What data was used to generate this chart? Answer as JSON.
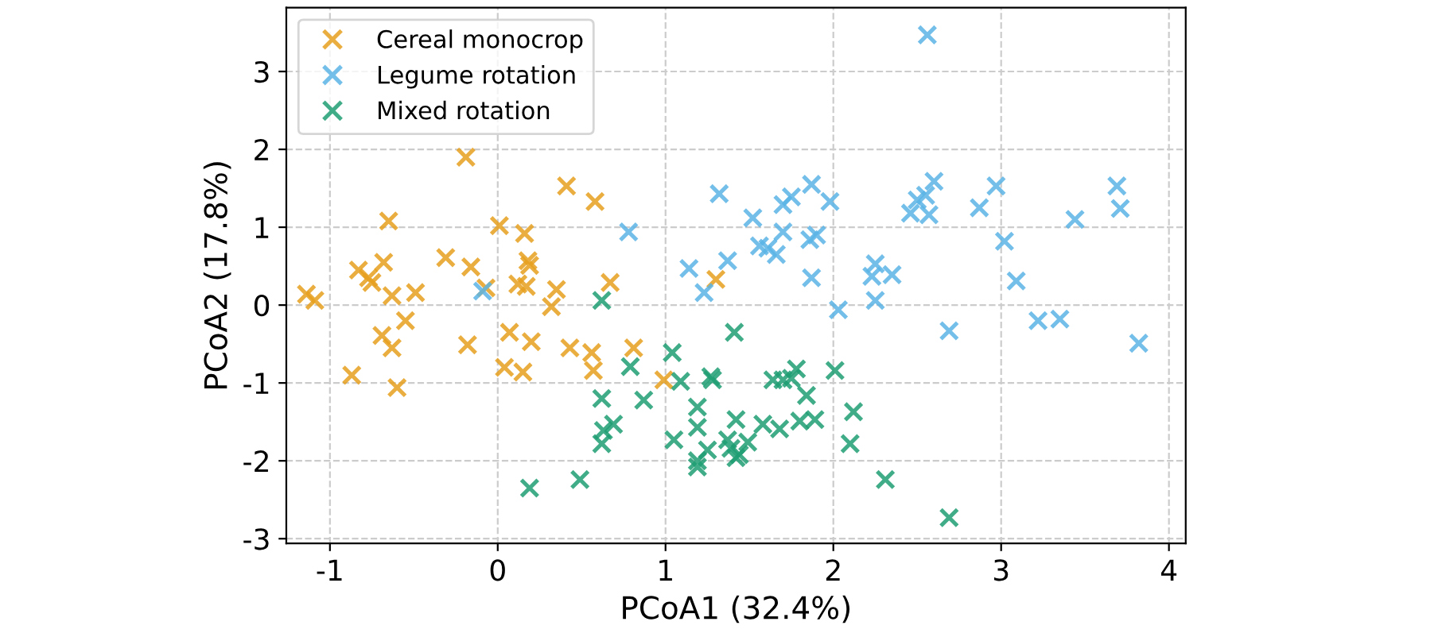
{
  "chart_data": {
    "type": "scatter",
    "xlabel": "PCoA1 (32.4%)",
    "ylabel": "PCoA2 (17.8%)",
    "xlim": [
      -1.26,
      4.1
    ],
    "ylim": [
      -3.06,
      3.82
    ],
    "xticks": [
      -1,
      0,
      1,
      2,
      3,
      4
    ],
    "yticks": [
      -3,
      -2,
      -1,
      0,
      1,
      2,
      3
    ],
    "grid": true,
    "legend": "top left",
    "marker": "cross",
    "series": [
      {
        "name": "Cereal monocrop",
        "color": "#e6a01e",
        "x": [
          -1.14,
          -1.09,
          -0.83,
          -0.77,
          -0.75,
          -0.68,
          -0.65,
          -0.63,
          -0.49,
          -0.69,
          -0.55,
          -0.63,
          -0.87,
          -0.6,
          -0.19,
          -0.31,
          -0.16,
          -0.07,
          -0.18,
          0.01,
          0.16,
          0.18,
          0.19,
          0.12,
          0.17,
          0.35,
          0.32,
          0.07,
          0.2,
          0.04,
          0.15,
          0.41,
          0.58,
          0.67,
          0.43,
          0.56,
          0.57,
          0.81,
          0.99,
          1.3
        ],
        "values": [
          0.14,
          0.06,
          0.45,
          0.35,
          0.29,
          0.55,
          1.08,
          0.12,
          0.16,
          -0.39,
          -0.2,
          -0.55,
          -0.9,
          -1.06,
          1.9,
          0.61,
          0.49,
          0.22,
          -0.51,
          1.02,
          0.92,
          0.57,
          0.51,
          0.27,
          0.24,
          0.2,
          -0.02,
          -0.35,
          -0.47,
          -0.8,
          -0.86,
          1.53,
          1.33,
          0.29,
          -0.55,
          -0.61,
          -0.84,
          -0.55,
          -0.96,
          0.33
        ]
      },
      {
        "name": "Legume rotation",
        "color": "#5ab4e6",
        "x": [
          -0.09,
          0.78,
          1.14,
          1.23,
          1.32,
          1.37,
          1.52,
          1.56,
          1.61,
          1.66,
          1.7,
          1.7,
          1.75,
          1.87,
          1.86,
          1.9,
          1.87,
          1.98,
          2.03,
          2.25,
          2.23,
          2.35,
          2.25,
          2.46,
          2.5,
          2.55,
          2.57,
          2.6,
          2.56,
          2.69,
          2.87,
          2.97,
          3.02,
          3.09,
          3.22,
          3.35,
          3.44,
          3.69,
          3.71,
          3.82
        ],
        "values": [
          0.18,
          0.94,
          0.47,
          0.16,
          1.43,
          0.57,
          1.12,
          0.76,
          0.73,
          0.65,
          0.94,
          1.29,
          1.39,
          1.55,
          0.84,
          0.9,
          0.35,
          1.33,
          -0.06,
          0.53,
          0.37,
          0.39,
          0.06,
          1.18,
          1.35,
          1.41,
          1.16,
          1.59,
          3.47,
          -0.33,
          1.25,
          1.53,
          0.82,
          0.31,
          -0.2,
          -0.18,
          1.1,
          1.53,
          1.24,
          -0.49
        ]
      },
      {
        "name": "Mixed rotation",
        "color": "#1e9e73",
        "x": [
          0.62,
          1.41,
          1.04,
          0.79,
          1.09,
          1.27,
          1.28,
          1.64,
          1.7,
          1.75,
          1.78,
          1.84,
          2.01,
          0.62,
          0.87,
          1.19,
          1.42,
          1.58,
          1.68,
          1.8,
          1.89,
          2.12,
          0.69,
          0.63,
          0.62,
          1.19,
          1.05,
          1.25,
          1.37,
          1.39,
          1.44,
          1.49,
          1.42,
          1.19,
          1.19,
          2.1,
          0.49,
          0.19,
          2.31,
          2.69
        ],
        "values": [
          0.06,
          -0.35,
          -0.61,
          -0.79,
          -0.98,
          -0.92,
          -0.96,
          -0.96,
          -0.96,
          -0.94,
          -0.82,
          -1.16,
          -0.84,
          -1.2,
          -1.22,
          -1.31,
          -1.47,
          -1.53,
          -1.59,
          -1.49,
          -1.47,
          -1.37,
          -1.53,
          -1.61,
          -1.78,
          -1.57,
          -1.73,
          -1.86,
          -1.73,
          -1.84,
          -1.92,
          -1.76,
          -1.96,
          -2.0,
          -2.08,
          -1.78,
          -2.24,
          -2.35,
          -2.24,
          -2.73
        ]
      }
    ]
  }
}
